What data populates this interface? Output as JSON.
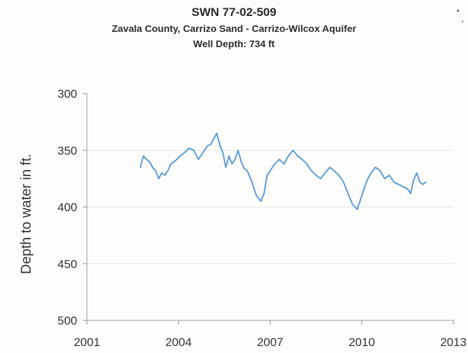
{
  "chart_data": {
    "type": "line",
    "title": "SWN 77-02-509",
    "subtitle": "Zavala County, Carrizo Sand - Carrizo-Wilcox Aquifer",
    "subtitle2": "Well Depth: 734 ft",
    "xlabel": "",
    "ylabel": "Depth to water in ft.",
    "xlim": [
      2001,
      2013
    ],
    "ylim": [
      300,
      500
    ],
    "y_inverted": true,
    "xticks": [
      "2001",
      "2004",
      "2007",
      "2010",
      "2013"
    ],
    "yticks": [
      "300",
      "350",
      "400",
      "450",
      "500"
    ],
    "grid": true,
    "series_color": "#5b9bd5",
    "series": [
      {
        "x": [
          2002.75,
          2002.85,
          2002.95,
          2003.05,
          2003.15,
          2003.25,
          2003.35,
          2003.45,
          2003.55,
          2003.65,
          2003.75,
          2003.85,
          2003.95,
          2004.05,
          2004.2,
          2004.35,
          2004.5,
          2004.65,
          2004.8,
          2004.95,
          2005.05,
          2005.15,
          2005.25,
          2005.35,
          2005.45,
          2005.55,
          2005.65,
          2005.75,
          2005.85,
          2005.95,
          2006.05,
          2006.15,
          2006.25,
          2006.4,
          2006.55,
          2006.7,
          2006.8,
          2006.9,
          2007.0,
          2007.15,
          2007.3,
          2007.45,
          2007.6,
          2007.75,
          2007.9,
          2008.05,
          2008.2,
          2008.35,
          2008.5,
          2008.65,
          2008.8,
          2008.95,
          2009.1,
          2009.25,
          2009.4,
          2009.55,
          2009.7,
          2009.85,
          2010.0,
          2010.15,
          2010.3,
          2010.45,
          2010.6,
          2010.75,
          2010.9,
          2011.05,
          2011.2,
          2011.35,
          2011.5,
          2011.6,
          2011.7,
          2011.8,
          2011.9,
          2012.0,
          2012.1
        ],
        "values": [
          365,
          355,
          358,
          360,
          365,
          368,
          375,
          370,
          372,
          368,
          362,
          360,
          358,
          355,
          352,
          348,
          350,
          358,
          352,
          346,
          345,
          340,
          335,
          345,
          352,
          365,
          355,
          362,
          358,
          350,
          360,
          366,
          368,
          378,
          390,
          395,
          388,
          372,
          368,
          362,
          358,
          362,
          355,
          350,
          355,
          358,
          362,
          368,
          372,
          375,
          370,
          365,
          368,
          372,
          378,
          388,
          398,
          402,
          390,
          378,
          370,
          365,
          368,
          375,
          372,
          378,
          380,
          382,
          384,
          388,
          376,
          370,
          378,
          380,
          378
        ]
      }
    ]
  }
}
